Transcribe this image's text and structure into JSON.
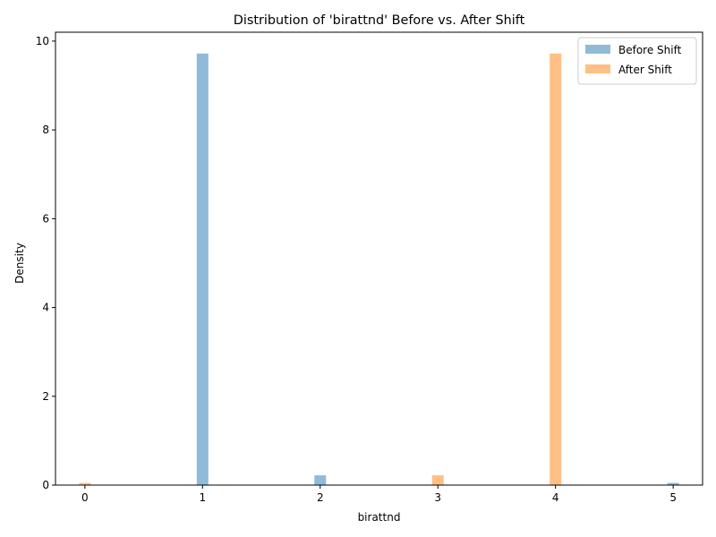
{
  "chart_data": {
    "type": "bar",
    "title": "Distribution of 'birattnd' Before vs. After Shift",
    "xlabel": "birattnd",
    "ylabel": "Density",
    "xlim": [
      -0.25,
      5.25
    ],
    "ylim": [
      0,
      10.2
    ],
    "xticks": [
      "0",
      "1",
      "2",
      "3",
      "4",
      "5"
    ],
    "yticks": [
      "0",
      "2",
      "4",
      "6",
      "8",
      "10"
    ],
    "grid": false,
    "legend_position": "top-right",
    "series": [
      {
        "name": "Before Shift",
        "color": "#1f77b4",
        "opacity": 0.5,
        "points": [
          {
            "x": 1,
            "y": 9.72
          },
          {
            "x": 2,
            "y": 0.22
          },
          {
            "x": 5,
            "y": 0.05
          }
        ]
      },
      {
        "name": "After Shift",
        "color": "#ff7f0e",
        "opacity": 0.5,
        "points": [
          {
            "x": 0,
            "y": 0.05
          },
          {
            "x": 3,
            "y": 0.22
          },
          {
            "x": 4,
            "y": 9.72
          }
        ]
      }
    ]
  }
}
